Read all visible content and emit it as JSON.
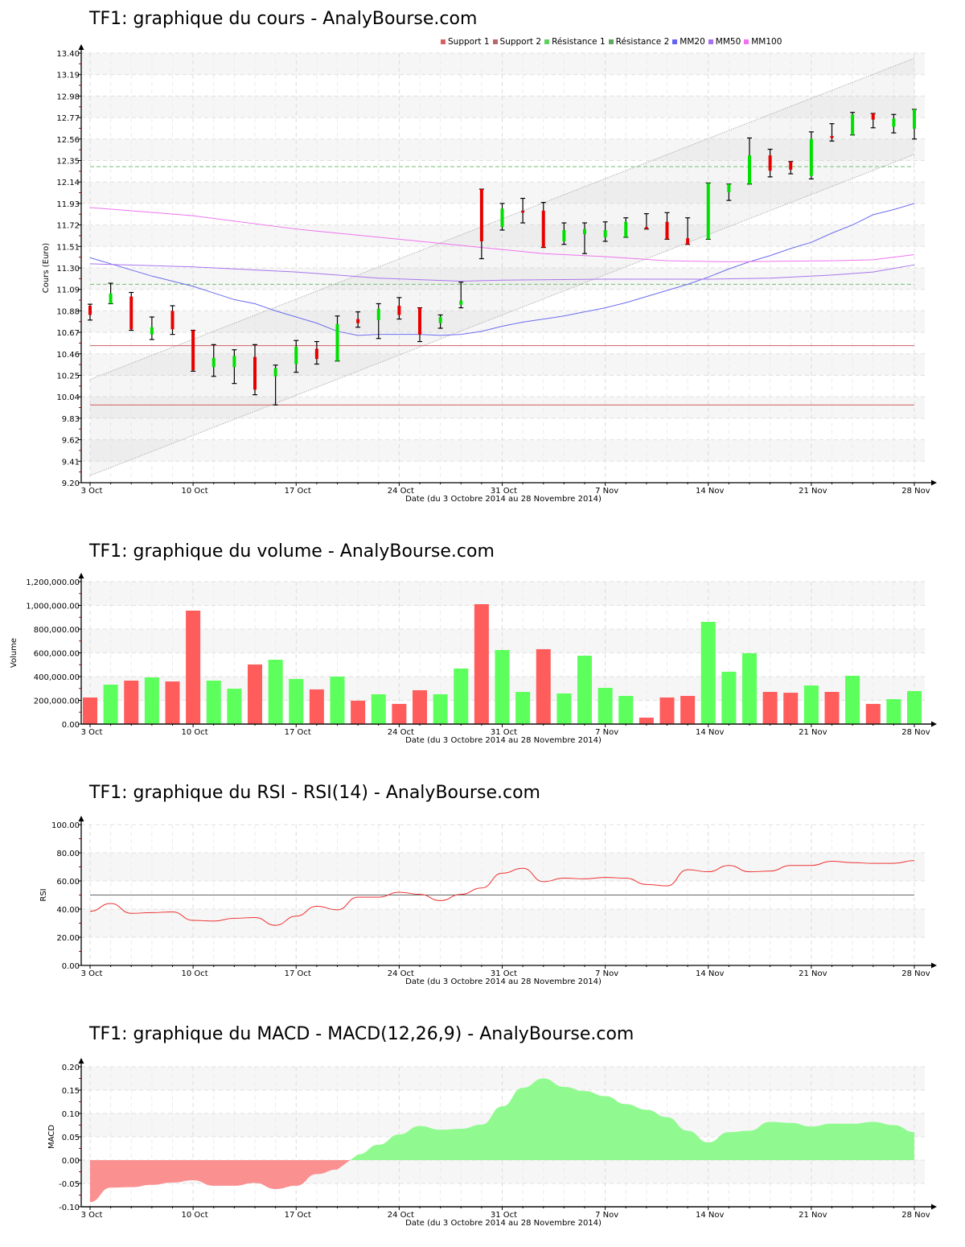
{
  "charts": {
    "price": {
      "title": "TF1: graphique du cours - AnalyBourse.com",
      "ylabel": "Cours (Euro)",
      "xlabel": "Date (du 3 Octobre 2014 au 28 Novembre 2014)"
    },
    "volume": {
      "title": "TF1: graphique du volume - AnalyBourse.com",
      "ylabel": "Volume",
      "xlabel": "Date (du 3 Octobre 2014 au 28 Novembre 2014)"
    },
    "rsi": {
      "title": "TF1: graphique du RSI - RSI(14) - AnalyBourse.com",
      "ylabel": "RSI",
      "xlabel": "Date (du 3 Octobre 2014 au 28 Novembre 2014)"
    },
    "macd": {
      "title": "TF1: graphique du MACD - MACD(12,26,9) - AnalyBourse.com",
      "ylabel": "MACD",
      "xlabel": "Date (du 3 Octobre 2014 au 28 Novembre 2014)"
    }
  },
  "legend": [
    {
      "label": "Support 1",
      "color": "#d96060"
    },
    {
      "label": "Support 2",
      "color": "#b86868"
    },
    {
      "label": "Résistance 1",
      "color": "#60d060"
    },
    {
      "label": "Résistance 2",
      "color": "#60a860"
    },
    {
      "label": "MM20",
      "color": "#6464f0"
    },
    {
      "label": "MM50",
      "color": "#a870f0"
    },
    {
      "label": "MM100",
      "color": "#f070f0"
    }
  ],
  "colors": {
    "up": "#00e000",
    "down": "#e80000",
    "vol_up": "#5cff5c",
    "vol_down": "#ff5c5c",
    "rsi_line": "#ee3333",
    "macd_pos": "#90fa90",
    "macd_neg": "#fa9090",
    "support": "#d06060",
    "resistance": "#70c070",
    "mm20": "#6c6cee",
    "mm50": "#a874ee",
    "mm100": "#ee74ee",
    "channel": "#b0b0b0"
  },
  "chart_data": [
    {
      "type": "candlestick",
      "title": "TF1: graphique du cours - AnalyBourse.com",
      "xlabel": "Date (du 3 Octobre 2014 au 28 Novembre 2014)",
      "ylabel": "Cours (Euro)",
      "ylim": [
        9.2,
        13.4
      ],
      "yticks": [
        "9.20",
        "9.41",
        "9.62",
        "9.83",
        "10.04",
        "10.25",
        "10.46",
        "10.67",
        "10.88",
        "11.09",
        "11.30",
        "11.51",
        "11.72",
        "11.93",
        "12.14",
        "12.35",
        "12.56",
        "12.77",
        "12.98",
        "13.19",
        "13.40"
      ],
      "xticks": [
        {
          "label": "3 Oct",
          "index": 0
        },
        {
          "label": "10 Oct",
          "index": 5
        },
        {
          "label": "17 Oct",
          "index": 10
        },
        {
          "label": "24 Oct",
          "index": 15
        },
        {
          "label": "31 Oct",
          "index": 20
        },
        {
          "label": "7 Nov",
          "index": 25
        },
        {
          "label": "14 Nov",
          "index": 30
        },
        {
          "label": "21 Nov",
          "index": 35
        },
        {
          "label": "28 Nov",
          "index": 40
        }
      ],
      "legend_position": "top-right",
      "grid": true,
      "candles": [
        {
          "o": 10.93,
          "h": 10.945,
          "l": 10.79,
          "c": 10.84
        },
        {
          "o": 10.95,
          "h": 11.15,
          "l": 10.95,
          "c": 11.05
        },
        {
          "o": 11.02,
          "h": 11.06,
          "l": 10.69,
          "c": 10.7
        },
        {
          "o": 10.65,
          "h": 10.82,
          "l": 10.6,
          "c": 10.72
        },
        {
          "o": 10.88,
          "h": 10.93,
          "l": 10.65,
          "c": 10.7
        },
        {
          "o": 10.69,
          "h": 10.69,
          "l": 10.29,
          "c": 10.3
        },
        {
          "o": 10.33,
          "h": 10.55,
          "l": 10.24,
          "c": 10.42
        },
        {
          "o": 10.33,
          "h": 10.5,
          "l": 10.17,
          "c": 10.44
        },
        {
          "o": 10.43,
          "h": 10.55,
          "l": 10.06,
          "c": 10.11
        },
        {
          "o": 10.24,
          "h": 10.35,
          "l": 9.96,
          "c": 10.32
        },
        {
          "o": 10.36,
          "h": 10.59,
          "l": 10.28,
          "c": 10.53
        },
        {
          "o": 10.51,
          "h": 10.58,
          "l": 10.36,
          "c": 10.41
        },
        {
          "o": 10.39,
          "h": 10.83,
          "l": 10.39,
          "c": 10.75
        },
        {
          "o": 10.8,
          "h": 10.87,
          "l": 10.72,
          "c": 10.76
        },
        {
          "o": 10.79,
          "h": 10.95,
          "l": 10.61,
          "c": 10.9
        },
        {
          "o": 10.93,
          "h": 11.01,
          "l": 10.8,
          "c": 10.84
        },
        {
          "o": 10.91,
          "h": 10.91,
          "l": 10.58,
          "c": 10.65
        },
        {
          "o": 10.76,
          "h": 10.84,
          "l": 10.71,
          "c": 10.82
        },
        {
          "o": 10.94,
          "h": 11.16,
          "l": 10.91,
          "c": 10.98
        },
        {
          "o": 12.07,
          "h": 12.07,
          "l": 11.39,
          "c": 11.56
        },
        {
          "o": 11.7,
          "h": 11.93,
          "l": 11.67,
          "c": 11.88
        },
        {
          "o": 11.86,
          "h": 11.98,
          "l": 11.74,
          "c": 11.84
        },
        {
          "o": 11.86,
          "h": 11.94,
          "l": 11.5,
          "c": 11.5
        },
        {
          "o": 11.56,
          "h": 11.74,
          "l": 11.53,
          "c": 11.67
        },
        {
          "o": 11.63,
          "h": 11.74,
          "l": 11.44,
          "c": 11.68
        },
        {
          "o": 11.6,
          "h": 11.75,
          "l": 11.56,
          "c": 11.67
        },
        {
          "o": 11.6,
          "h": 11.79,
          "l": 11.6,
          "c": 11.75
        },
        {
          "o": 11.7,
          "h": 11.83,
          "l": 11.68,
          "c": 11.68
        },
        {
          "o": 11.75,
          "h": 11.84,
          "l": 11.58,
          "c": 11.58
        },
        {
          "o": 11.59,
          "h": 11.79,
          "l": 11.53,
          "c": 11.53
        },
        {
          "o": 11.58,
          "h": 12.13,
          "l": 11.58,
          "c": 12.13
        },
        {
          "o": 12.04,
          "h": 12.12,
          "l": 11.96,
          "c": 12.12
        },
        {
          "o": 12.12,
          "h": 12.57,
          "l": 12.12,
          "c": 12.4
        },
        {
          "o": 12.4,
          "h": 12.46,
          "l": 12.19,
          "c": 12.25
        },
        {
          "o": 12.34,
          "h": 12.34,
          "l": 12.22,
          "c": 12.26
        },
        {
          "o": 12.2,
          "h": 12.63,
          "l": 12.17,
          "c": 12.56
        },
        {
          "o": 12.59,
          "h": 12.71,
          "l": 12.54,
          "c": 12.57
        },
        {
          "o": 12.6,
          "h": 12.82,
          "l": 12.6,
          "c": 12.8
        },
        {
          "o": 12.81,
          "h": 12.81,
          "l": 12.67,
          "c": 12.75
        },
        {
          "o": 12.68,
          "h": 12.8,
          "l": 12.62,
          "c": 12.76
        },
        {
          "o": 12.66,
          "h": 12.85,
          "l": 12.56,
          "c": 12.85
        }
      ],
      "horizontal_lines": [
        {
          "name": "Support 1",
          "value": 10.54
        },
        {
          "name": "Support 2",
          "value": 9.96
        },
        {
          "name": "Résistance 1",
          "value": 11.14
        },
        {
          "name": "Résistance 2",
          "value": 12.29
        }
      ],
      "series": [
        {
          "name": "MM20",
          "points": [
            [
              0,
              11.4
            ],
            [
              3,
              11.22
            ],
            [
              5,
              11.12
            ],
            [
              7,
              10.99
            ],
            [
              8,
              10.95
            ],
            [
              9,
              10.88
            ],
            [
              10,
              10.82
            ],
            [
              11,
              10.76
            ],
            [
              12,
              10.68
            ],
            [
              13,
              10.64
            ],
            [
              14,
              10.65
            ],
            [
              15,
              10.65
            ],
            [
              16,
              10.65
            ],
            [
              17,
              10.64
            ],
            [
              18,
              10.65
            ],
            [
              19,
              10.68
            ],
            [
              20,
              10.73
            ],
            [
              21,
              10.77
            ],
            [
              22,
              10.8
            ],
            [
              23,
              10.83
            ],
            [
              24,
              10.87
            ],
            [
              25,
              10.91
            ],
            [
              26,
              10.96
            ],
            [
              27,
              11.02
            ],
            [
              28,
              11.08
            ],
            [
              29,
              11.14
            ],
            [
              30,
              11.21
            ],
            [
              31,
              11.29
            ],
            [
              32,
              11.36
            ],
            [
              33,
              11.42
            ],
            [
              34,
              11.49
            ],
            [
              35,
              11.55
            ],
            [
              36,
              11.64
            ],
            [
              37,
              11.72
            ],
            [
              38,
              11.82
            ],
            [
              39,
              11.87
            ],
            [
              40,
              11.93
            ]
          ]
        },
        {
          "name": "MM50",
          "points": [
            [
              0,
              11.34
            ],
            [
              5,
              11.31
            ],
            [
              10,
              11.26
            ],
            [
              14,
              11.2
            ],
            [
              18,
              11.17
            ],
            [
              20,
              11.18
            ],
            [
              25,
              11.19
            ],
            [
              30,
              11.19
            ],
            [
              33,
              11.2
            ],
            [
              36,
              11.23
            ],
            [
              38,
              11.26
            ],
            [
              40,
              11.33
            ]
          ]
        },
        {
          "name": "MM100",
          "points": [
            [
              0,
              11.89
            ],
            [
              5,
              11.81
            ],
            [
              10,
              11.68
            ],
            [
              15,
              11.58
            ],
            [
              19,
              11.5
            ],
            [
              22,
              11.44
            ],
            [
              25,
              11.41
            ],
            [
              28,
              11.37
            ],
            [
              31,
              11.36
            ],
            [
              36,
              11.37
            ],
            [
              38,
              11.38
            ],
            [
              40,
              11.43
            ]
          ]
        }
      ],
      "channel": {
        "lower": [
          [
            0,
            9.27
          ],
          [
            40,
            12.41
          ]
        ],
        "upper": [
          [
            0,
            10.21
          ],
          [
            40,
            13.35
          ]
        ]
      }
    },
    {
      "type": "bar",
      "title": "TF1: graphique du volume - AnalyBourse.com",
      "xlabel": "Date (du 3 Octobre 2014 au 28 Novembre 2014)",
      "ylabel": "Volume",
      "ylim": [
        0,
        1200000
      ],
      "yticks": [
        "0.00",
        "200,000.00",
        "400,000.00",
        "600,000.00",
        "800,000.00",
        "1,000,000.00",
        "1,200,000.00"
      ],
      "grid": true,
      "values": [
        224000,
        332000,
        366000,
        393000,
        359000,
        956000,
        366000,
        298000,
        502000,
        542000,
        380000,
        292000,
        400000,
        197000,
        251000,
        170000,
        285000,
        251000,
        468000,
        1010000,
        624000,
        271000,
        631000,
        258000,
        576000,
        305000,
        237000,
        54000,
        224000,
        237000,
        861000,
        441000,
        597000,
        271000,
        264000,
        325000,
        271000,
        407000,
        170000,
        210000,
        278000
      ],
      "directions": [
        "down",
        "up",
        "down",
        "up",
        "down",
        "down",
        "up",
        "up",
        "down",
        "up",
        "up",
        "down",
        "up",
        "down",
        "up",
        "down",
        "down",
        "up",
        "up",
        "down",
        "up",
        "up",
        "down",
        "up",
        "up",
        "up",
        "up",
        "down",
        "down",
        "down",
        "up",
        "up",
        "up",
        "down",
        "down",
        "up",
        "down",
        "up",
        "down",
        "up",
        "up"
      ]
    },
    {
      "type": "line",
      "title": "TF1: graphique du RSI - RSI(14) - AnalyBourse.com",
      "xlabel": "Date (du 3 Octobre 2014 au 28 Novembre 2014)",
      "ylabel": "RSI",
      "ylim": [
        0,
        100
      ],
      "yticks": [
        "0.00",
        "20.00",
        "40.00",
        "60.00",
        "80.00",
        "100.00"
      ],
      "reference_line": 50,
      "grid": true,
      "series": [
        {
          "name": "RSI(14)",
          "values": [
            38.5,
            44,
            37,
            37.5,
            38,
            32,
            31.5,
            33.5,
            34,
            28.5,
            35,
            42,
            39.5,
            48.5,
            48.5,
            52,
            50.5,
            46,
            50.5,
            55,
            65.5,
            69,
            59.5,
            62,
            61.5,
            62.5,
            62,
            57.5,
            56.5,
            68,
            66.5,
            71,
            66.5,
            67,
            71,
            71,
            74,
            73,
            72.5,
            72.5,
            74.5
          ]
        }
      ]
    },
    {
      "type": "area",
      "title": "TF1: graphique du MACD - MACD(12,26,9) - AnalyBourse.com",
      "xlabel": "Date (du 3 Octobre 2014 au 28 Novembre 2014)",
      "ylabel": "MACD",
      "ylim": [
        -0.1,
        0.2
      ],
      "yticks": [
        "-0.10",
        "-0.05",
        "0.00",
        "0.05",
        "0.10",
        "0.15",
        "0.20"
      ],
      "grid": true,
      "series": [
        {
          "name": "MACD(12,26,9)",
          "values": [
            -0.09,
            -0.059,
            -0.058,
            -0.053,
            -0.048,
            -0.043,
            -0.055,
            -0.055,
            -0.049,
            -0.062,
            -0.055,
            -0.03,
            -0.02,
            0.012,
            0.033,
            0.055,
            0.073,
            0.065,
            0.067,
            0.076,
            0.115,
            0.155,
            0.175,
            0.157,
            0.148,
            0.137,
            0.12,
            0.108,
            0.092,
            0.063,
            0.038,
            0.06,
            0.063,
            0.082,
            0.08,
            0.072,
            0.078,
            0.078,
            0.082,
            0.075,
            0.06
          ]
        }
      ]
    }
  ]
}
